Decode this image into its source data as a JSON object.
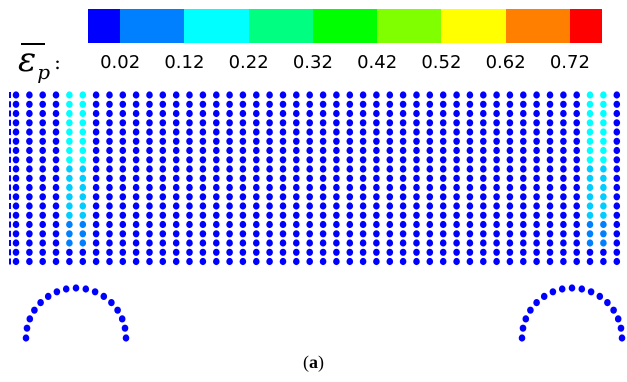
{
  "legend": {
    "symbol": "ε",
    "subscript": "p",
    "colon": ":",
    "colors": [
      "#0000ff",
      "#0080ff",
      "#00ffff",
      "#00ff80",
      "#00ff00",
      "#80ff00",
      "#ffff00",
      "#ff8000",
      "#ff0000"
    ],
    "segment_weights": [
      1,
      2,
      2,
      2,
      2,
      2,
      2,
      2,
      1
    ],
    "tick_labels": [
      "0.02",
      "0.12",
      "0.22",
      "0.32",
      "0.42",
      "0.52",
      "0.62",
      "0.72"
    ]
  },
  "particles": {
    "base_color": "#0000ff",
    "columns": 46,
    "rows": 19,
    "strain_bands": [
      {
        "side": "left",
        "colors": [
          "#00ffff",
          "#00ccff",
          "#0080ff"
        ]
      },
      {
        "side": "right",
        "colors": [
          "#00ffff",
          "#00ccff",
          "#0080ff"
        ]
      }
    ],
    "supports": 2,
    "support_color": "#0000ff"
  },
  "caption": {
    "open": "(",
    "label": "a",
    "close": ")"
  }
}
